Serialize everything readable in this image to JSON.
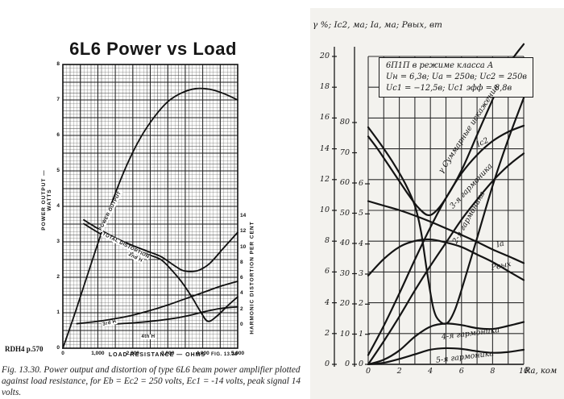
{
  "page": {
    "background": "#ffffff",
    "ink_color": "#111111",
    "right_panel_tint": "#f3f2ee"
  },
  "chart_data": [
    {
      "id": "left",
      "type": "line",
      "title": "6L6 Power vs Load",
      "xlabel": "LOAD  RESISTANCE — OHMS",
      "x_ticks": [
        "0",
        "1,000",
        "2,000",
        "3,000",
        "4,000",
        "5,000"
      ],
      "xlim": [
        0,
        5000
      ],
      "y_left": {
        "label": "POWER  OUTPUT — WATTS",
        "ticks": [
          8,
          7,
          6,
          5,
          4,
          3,
          2,
          1,
          0
        ],
        "lim": [
          0,
          8
        ]
      },
      "y_right": {
        "label": "HARMONIC  DISTORTION  PER  CENT",
        "ticks": [
          14,
          12,
          10,
          8,
          6,
          4,
          2,
          0
        ],
        "lim": [
          0,
          14
        ]
      },
      "grid": "fine graph paper, majors every 500 ohms and 0.5 watt",
      "fig_label": "FIG. 13.30",
      "source": "RDH4  p.570",
      "caption_lines": [
        "Fig. 13.30.  Power output and distortion of type 6L6 beam power amplifier plotted",
        "against load resistance, for Eb = Ec2 = 250 volts, Ec1 = -14 volts, peak signal 14 volts."
      ],
      "series": [
        {
          "name": "power-output",
          "label": "POWER OUTPUT",
          "scale": "watts",
          "points": [
            [
              0,
              0
            ],
            [
              300,
              0.85
            ],
            [
              600,
              1.75
            ],
            [
              1000,
              2.95
            ],
            [
              1400,
              4.1
            ],
            [
              1800,
              5.1
            ],
            [
              2200,
              5.9
            ],
            [
              2600,
              6.5
            ],
            [
              3000,
              6.95
            ],
            [
              3400,
              7.2
            ],
            [
              3800,
              7.32
            ],
            [
              4200,
              7.3
            ],
            [
              4600,
              7.18
            ],
            [
              5000,
              7.0
            ]
          ]
        },
        {
          "name": "total-distortion",
          "label": "TOTAL  DISTORTION",
          "scale": "pct",
          "points": [
            [
              600,
              13.5
            ],
            [
              1000,
              12.4
            ],
            [
              1500,
              11.2
            ],
            [
              2000,
              10.2
            ],
            [
              2400,
              9.5
            ],
            [
              2800,
              8.8
            ],
            [
              3100,
              7.9
            ],
            [
              3400,
              7.05
            ],
            [
              3650,
              6.85
            ],
            [
              3900,
              7.05
            ],
            [
              4200,
              7.9
            ],
            [
              4600,
              9.9
            ],
            [
              5000,
              11.9
            ]
          ]
        },
        {
          "name": "second-harmonic",
          "label": "2nd H",
          "scale": "pct",
          "points": [
            [
              600,
              13.0
            ],
            [
              1000,
              11.9
            ],
            [
              1500,
              10.7
            ],
            [
              2000,
              9.8
            ],
            [
              2400,
              9.1
            ],
            [
              2800,
              8.4
            ],
            [
              3100,
              7.1
            ],
            [
              3400,
              5.5
            ],
            [
              3700,
              3.5
            ],
            [
              3950,
              1.6
            ],
            [
              4150,
              0.45
            ],
            [
              4400,
              1.1
            ],
            [
              4700,
              2.4
            ],
            [
              5000,
              3.6
            ]
          ]
        },
        {
          "name": "third-harmonic",
          "label": "3rd H",
          "scale": "pct",
          "points": [
            [
              400,
              0.15
            ],
            [
              1000,
              0.45
            ],
            [
              1500,
              0.8
            ],
            [
              2000,
              1.25
            ],
            [
              2500,
              1.85
            ],
            [
              3000,
              2.55
            ],
            [
              3500,
              3.35
            ],
            [
              4000,
              4.15
            ],
            [
              4500,
              4.95
            ],
            [
              5000,
              5.6
            ]
          ]
        },
        {
          "name": "fourth-harmonic",
          "label": "4th H",
          "scale": "pct",
          "points": [
            [
              1200,
              0.05
            ],
            [
              2000,
              0.25
            ],
            [
              2600,
              0.5
            ],
            [
              3200,
              0.85
            ],
            [
              3700,
              1.3
            ],
            [
              4100,
              1.75
            ],
            [
              4500,
              2.1
            ],
            [
              4800,
              2.25
            ],
            [
              5000,
              2.3
            ]
          ]
        }
      ]
    },
    {
      "id": "right",
      "type": "line",
      "header": "γ %; Ic2, ма; Iа, ма; Pвых, вт",
      "info_box": [
        "6П1П в режиме класса А",
        "Uн = 6,3в;  Uа = 250в;  Uс2 = 250в",
        "Uс1 = −12,5в;  Uс1 эфф = 8,8в"
      ],
      "xlabel": "Rа, ком",
      "x_ticks": [
        0,
        2,
        4,
        6,
        8,
        10
      ],
      "xlim": [
        0,
        10
      ],
      "axes": {
        "gamma": {
          "name": "γ %",
          "ticks": [
            20,
            18,
            16,
            14,
            12,
            10,
            8,
            6,
            4,
            2,
            0
          ],
          "lim": [
            0,
            20
          ]
        },
        "current": {
          "name": "I, ма",
          "ticks": [
            80,
            70,
            60,
            50,
            40,
            30,
            20,
            10,
            0
          ],
          "lim": [
            0,
            80
          ]
        },
        "power": {
          "name": "P, вт",
          "ticks": [
            6,
            5,
            4,
            3,
            2,
            1,
            0
          ],
          "lim": [
            0,
            6
          ]
        }
      },
      "series": [
        {
          "name": "total-distortion",
          "label": "γ  Суммарные искажения",
          "scale": "gamma",
          "points": [
            [
              0,
              14.8
            ],
            [
              0.6,
              14.0
            ],
            [
              1.2,
              13.1
            ],
            [
              2,
              11.9
            ],
            [
              2.6,
              11.0
            ],
            [
              3.2,
              10.2
            ],
            [
              3.8,
              9.7
            ],
            [
              4.3,
              9.9
            ],
            [
              5,
              10.8
            ],
            [
              6,
              12.6
            ],
            [
              7,
              14.9
            ],
            [
              8,
              17.2
            ],
            [
              9,
              19.4
            ],
            [
              10,
              20.8
            ]
          ]
        },
        {
          "name": "second-harmonic",
          "label": "2-я гармоника",
          "scale": "gamma",
          "points": [
            [
              0,
              15.4
            ],
            [
              0.8,
              14.3
            ],
            [
              1.6,
              13.1
            ],
            [
              2.4,
              11.7
            ],
            [
              3.0,
              10.3
            ],
            [
              3.4,
              8.6
            ],
            [
              3.8,
              5.9
            ],
            [
              4.2,
              3.6
            ],
            [
              4.6,
              2.8
            ],
            [
              5.1,
              2.7
            ],
            [
              5.6,
              3.6
            ],
            [
              6.2,
              5.5
            ],
            [
              7,
              8.2
            ],
            [
              8,
              11.6
            ],
            [
              9,
              14.6
            ],
            [
              10,
              17.3
            ]
          ]
        },
        {
          "name": "third-harmonic",
          "label": "3-я гармоника",
          "scale": "gamma",
          "points": [
            [
              0,
              0
            ],
            [
              1,
              1.5
            ],
            [
              2,
              3.1
            ],
            [
              3,
              4.8
            ],
            [
              4,
              6.4
            ],
            [
              5,
              7.9
            ],
            [
              6,
              9.4
            ],
            [
              7,
              10.7
            ],
            [
              8,
              11.9
            ],
            [
              9,
              12.9
            ],
            [
              10,
              13.7
            ]
          ]
        },
        {
          "name": "screen-current",
          "label": "Ic2",
          "scale": "gamma",
          "points": [
            [
              0,
              0.6
            ],
            [
              1,
              2.5
            ],
            [
              2,
              4.6
            ],
            [
              3,
              6.8
            ],
            [
              4,
              8.9
            ],
            [
              5,
              10.8
            ],
            [
              6,
              12.4
            ],
            [
              7,
              13.6
            ],
            [
              8,
              14.5
            ],
            [
              9,
              15.1
            ],
            [
              10,
              15.5
            ]
          ]
        },
        {
          "name": "anode-current",
          "label": "Iа",
          "scale": "current",
          "points": [
            [
              0,
              54
            ],
            [
              1,
              52.5
            ],
            [
              2,
              51
            ],
            [
              3,
              49.2
            ],
            [
              4,
              47.2
            ],
            [
              5,
              45
            ],
            [
              6,
              42.8
            ],
            [
              7,
              40.5
            ],
            [
              8,
              38
            ],
            [
              9,
              35.8
            ],
            [
              10,
              33.5
            ]
          ]
        },
        {
          "name": "output-power",
          "label": "Pвых",
          "scale": "power",
          "points": [
            [
              0,
              2.95
            ],
            [
              1,
              3.5
            ],
            [
              2,
              3.9
            ],
            [
              3,
              4.1
            ],
            [
              4,
              4.15
            ],
            [
              5,
              4.05
            ],
            [
              6,
              3.9
            ],
            [
              7,
              3.65
            ],
            [
              8,
              3.4
            ],
            [
              9,
              3.1
            ],
            [
              10,
              2.8
            ]
          ]
        },
        {
          "name": "fourth-harmonic",
          "label": "4-я гармоника",
          "scale": "gamma",
          "points": [
            [
              0,
              0
            ],
            [
              1,
              0.3
            ],
            [
              2,
              0.9
            ],
            [
              3,
              1.8
            ],
            [
              4,
              2.45
            ],
            [
              5,
              2.65
            ],
            [
              6,
              2.55
            ],
            [
              7,
              2.35
            ],
            [
              8,
              2.3
            ],
            [
              9,
              2.5
            ],
            [
              10,
              2.75
            ]
          ]
        },
        {
          "name": "fifth-harmonic",
          "label": "5-я гармоника",
          "scale": "gamma",
          "points": [
            [
              0,
              0
            ],
            [
              1,
              0.1
            ],
            [
              2,
              0.35
            ],
            [
              3,
              0.65
            ],
            [
              4,
              0.95
            ],
            [
              5,
              1.05
            ],
            [
              6,
              1.0
            ],
            [
              7,
              0.85
            ],
            [
              8,
              0.75
            ],
            [
              9,
              0.8
            ],
            [
              10,
              0.95
            ]
          ]
        }
      ]
    }
  ]
}
